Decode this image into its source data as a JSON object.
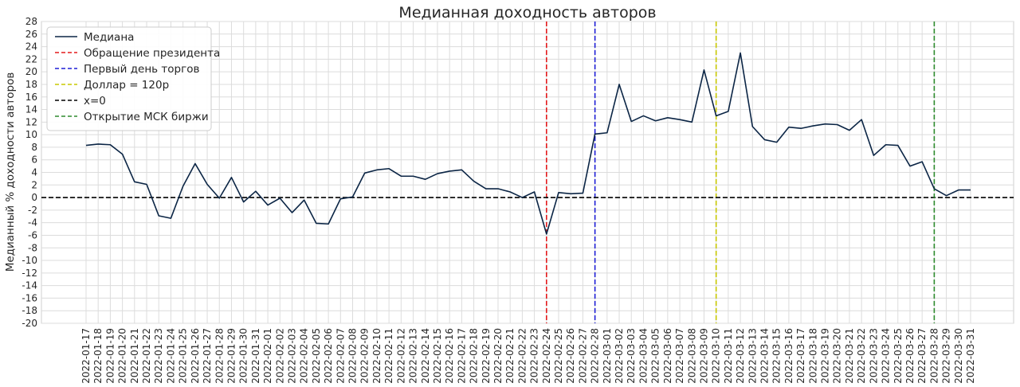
{
  "chart_data": {
    "type": "line",
    "title": "Медианная доходность авторов",
    "xlabel": "",
    "ylabel": "Медианный % доходности авторов",
    "ylim": [
      -20,
      28
    ],
    "yticks": [
      28,
      26,
      24,
      22,
      20,
      18,
      16,
      14,
      12,
      10,
      8,
      6,
      4,
      2,
      0,
      -2,
      -4,
      -6,
      -8,
      -10,
      -12,
      -14,
      -16,
      -18,
      -20
    ],
    "grid": true,
    "legend_position": "top-left",
    "x": [
      "2022-01-17",
      "2022-01-18",
      "2022-01-19",
      "2022-01-20",
      "2022-01-21",
      "2022-01-22",
      "2022-01-23",
      "2022-01-24",
      "2022-01-25",
      "2022-01-26",
      "2022-01-27",
      "2022-01-28",
      "2022-01-29",
      "2022-01-30",
      "2022-01-31",
      "2022-02-01",
      "2022-02-02",
      "2022-02-03",
      "2022-02-04",
      "2022-02-05",
      "2022-02-06",
      "2022-02-07",
      "2022-02-08",
      "2022-02-09",
      "2022-02-10",
      "2022-02-11",
      "2022-02-12",
      "2022-02-13",
      "2022-02-14",
      "2022-02-15",
      "2022-02-16",
      "2022-02-17",
      "2022-02-18",
      "2022-02-19",
      "2022-02-20",
      "2022-02-21",
      "2022-02-22",
      "2022-02-23",
      "2022-02-24",
      "2022-02-25",
      "2022-02-26",
      "2022-02-27",
      "2022-02-28",
      "2022-03-01",
      "2022-03-02",
      "2022-03-03",
      "2022-03-04",
      "2022-03-05",
      "2022-03-06",
      "2022-03-07",
      "2022-03-08",
      "2022-03-09",
      "2022-03-10",
      "2022-03-11",
      "2022-03-12",
      "2022-03-13",
      "2022-03-14",
      "2022-03-15",
      "2022-03-16",
      "2022-03-17",
      "2022-03-18",
      "2022-03-19",
      "2022-03-20",
      "2022-03-21",
      "2022-03-22",
      "2022-03-23",
      "2022-03-24",
      "2022-03-25",
      "2022-03-26",
      "2022-03-27",
      "2022-03-28",
      "2022-03-29",
      "2022-03-30",
      "2022-03-31"
    ],
    "series": [
      {
        "name": "Медиана",
        "color": "#0b2545",
        "values": [
          8.3,
          8.5,
          8.4,
          6.9,
          2.5,
          2.1,
          -2.9,
          -3.3,
          1.8,
          5.4,
          2.1,
          -0.1,
          3.2,
          -0.7,
          1.0,
          -1.2,
          -0.1,
          -2.4,
          -0.4,
          -4.1,
          -4.2,
          -0.2,
          0.1,
          3.9,
          4.4,
          4.6,
          3.4,
          3.4,
          2.9,
          3.8,
          4.2,
          4.4,
          2.6,
          1.4,
          1.4,
          0.9,
          0.0,
          0.9,
          -5.8,
          0.8,
          0.6,
          0.7,
          10.1,
          10.3,
          18.0,
          12.1,
          13.0,
          12.2,
          12.7,
          12.4,
          12.0,
          20.3,
          13.0,
          13.7,
          23.0,
          11.3,
          9.2,
          8.8,
          11.2,
          11.0,
          11.4,
          11.7,
          11.6,
          10.7,
          12.4,
          6.7,
          8.4,
          8.3,
          5.0,
          5.7,
          1.4,
          0.3,
          1.2,
          1.2
        ]
      }
    ],
    "reference_lines": [
      {
        "name": "Обращение президента",
        "orientation": "vertical",
        "x": "2022-02-24",
        "color": "#e41a1c",
        "style": "dashed"
      },
      {
        "name": "Первый день торгов",
        "orientation": "vertical",
        "x": "2022-02-28",
        "color": "#1f1fd6",
        "style": "dashed"
      },
      {
        "name": "Доллар = 120р",
        "orientation": "vertical",
        "x": "2022-03-10",
        "color": "#c8c800",
        "style": "dashed"
      },
      {
        "name": "x=0",
        "orientation": "horizontal",
        "y": 0,
        "color": "#000000",
        "style": "dashed"
      },
      {
        "name": "Открытие МСК биржи",
        "orientation": "vertical",
        "x": "2022-03-28",
        "color": "#2e8b2e",
        "style": "dashed"
      }
    ],
    "grid_color": "#dcdcdc"
  }
}
